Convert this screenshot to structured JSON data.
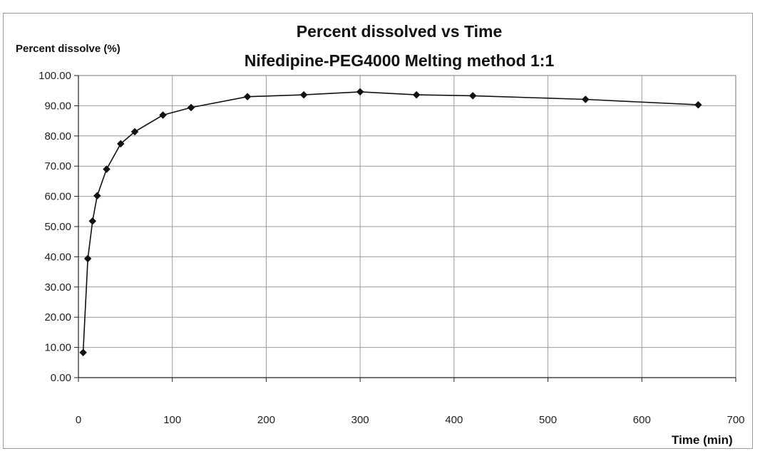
{
  "chart_data": {
    "type": "line",
    "title": "Percent dissolved vs Time",
    "subtitle": "Nifedipine-PEG4000 Melting method 1:1",
    "xlabel": "Time (min)",
    "ylabel": "Percent dissolve (%)",
    "xlim": [
      0,
      700
    ],
    "ylim": [
      0,
      100
    ],
    "x_ticks": [
      0,
      100,
      200,
      300,
      400,
      500,
      600,
      700
    ],
    "x_tick_labels": [
      "0",
      "100",
      "200",
      "300",
      "400",
      "500",
      "600",
      "700"
    ],
    "y_ticks": [
      0,
      10,
      20,
      30,
      40,
      50,
      60,
      70,
      80,
      90,
      100
    ],
    "y_tick_labels": [
      "0.00",
      "10.00",
      "20.00",
      "30.00",
      "40.00",
      "50.00",
      "60.00",
      "70.00",
      "80.00",
      "90.00",
      "100.00"
    ],
    "grid": true,
    "legend": "none",
    "series": [
      {
        "color": "#111111",
        "marker": "diamond",
        "x": [
          5,
          10,
          15,
          20,
          30,
          45,
          60,
          90,
          120,
          180,
          240,
          300,
          360,
          420,
          540,
          660
        ],
        "y": [
          8.3,
          39.4,
          51.8,
          60.2,
          69.0,
          77.4,
          81.4,
          86.9,
          89.4,
          93.0,
          93.6,
          94.6,
          93.6,
          93.3,
          92.1,
          90.3
        ]
      }
    ]
  }
}
